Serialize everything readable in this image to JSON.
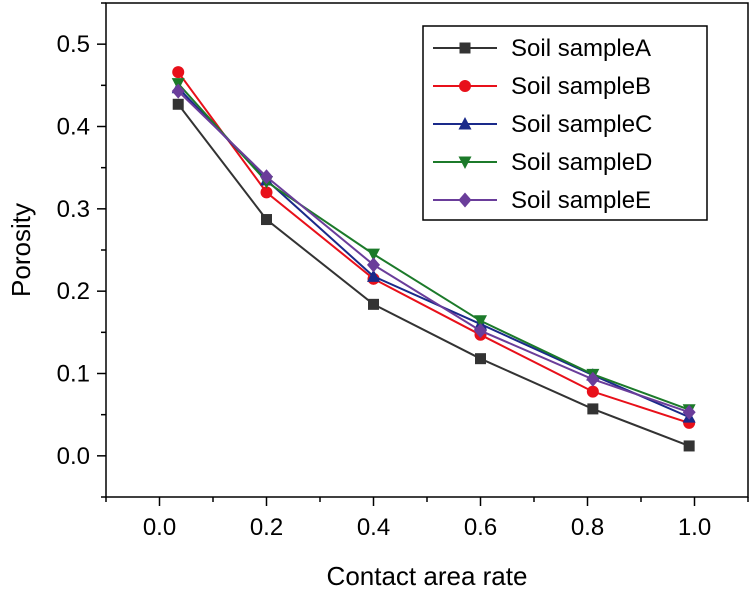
{
  "chart_data": {
    "type": "line",
    "title": "",
    "xlabel": "Contact area rate",
    "ylabel": "Porosity",
    "xlim": [
      -0.1,
      1.1
    ],
    "ylim": [
      -0.05,
      0.55
    ],
    "xticks": [
      0.0,
      0.2,
      0.4,
      0.6,
      0.8,
      1.0
    ],
    "xtick_labels": [
      "0.0",
      "0.2",
      "0.4",
      "0.6",
      "0.8",
      "1.0"
    ],
    "yticks": [
      0.0,
      0.1,
      0.2,
      0.3,
      0.4,
      0.5
    ],
    "ytick_labels": [
      "0.0",
      "0.1",
      "0.2",
      "0.3",
      "0.4",
      "0.5"
    ],
    "grid": false,
    "legend_position": "top-right",
    "x": [
      0.035,
      0.2,
      0.4,
      0.6,
      0.81,
      0.99
    ],
    "series": [
      {
        "name": "Soil sampleA",
        "color": "#333333",
        "marker": "square",
        "values": [
          0.427,
          0.287,
          0.184,
          0.118,
          0.057,
          0.012
        ]
      },
      {
        "name": "Soil sampleB",
        "color": "#e8101a",
        "marker": "circle",
        "values": [
          0.466,
          0.32,
          0.215,
          0.147,
          0.078,
          0.04
        ]
      },
      {
        "name": "Soil sampleC",
        "color": "#1a2a8a",
        "marker": "triangle-up",
        "values": [
          0.447,
          0.335,
          0.218,
          0.16,
          0.098,
          0.047
        ]
      },
      {
        "name": "Soil sampleD",
        "color": "#1c7a2a",
        "marker": "triangle-down",
        "values": [
          0.452,
          0.333,
          0.245,
          0.164,
          0.099,
          0.056
        ]
      },
      {
        "name": "Soil sampleE",
        "color": "#6a3d9a",
        "marker": "diamond",
        "values": [
          0.443,
          0.339,
          0.232,
          0.152,
          0.093,
          0.053
        ]
      }
    ]
  }
}
